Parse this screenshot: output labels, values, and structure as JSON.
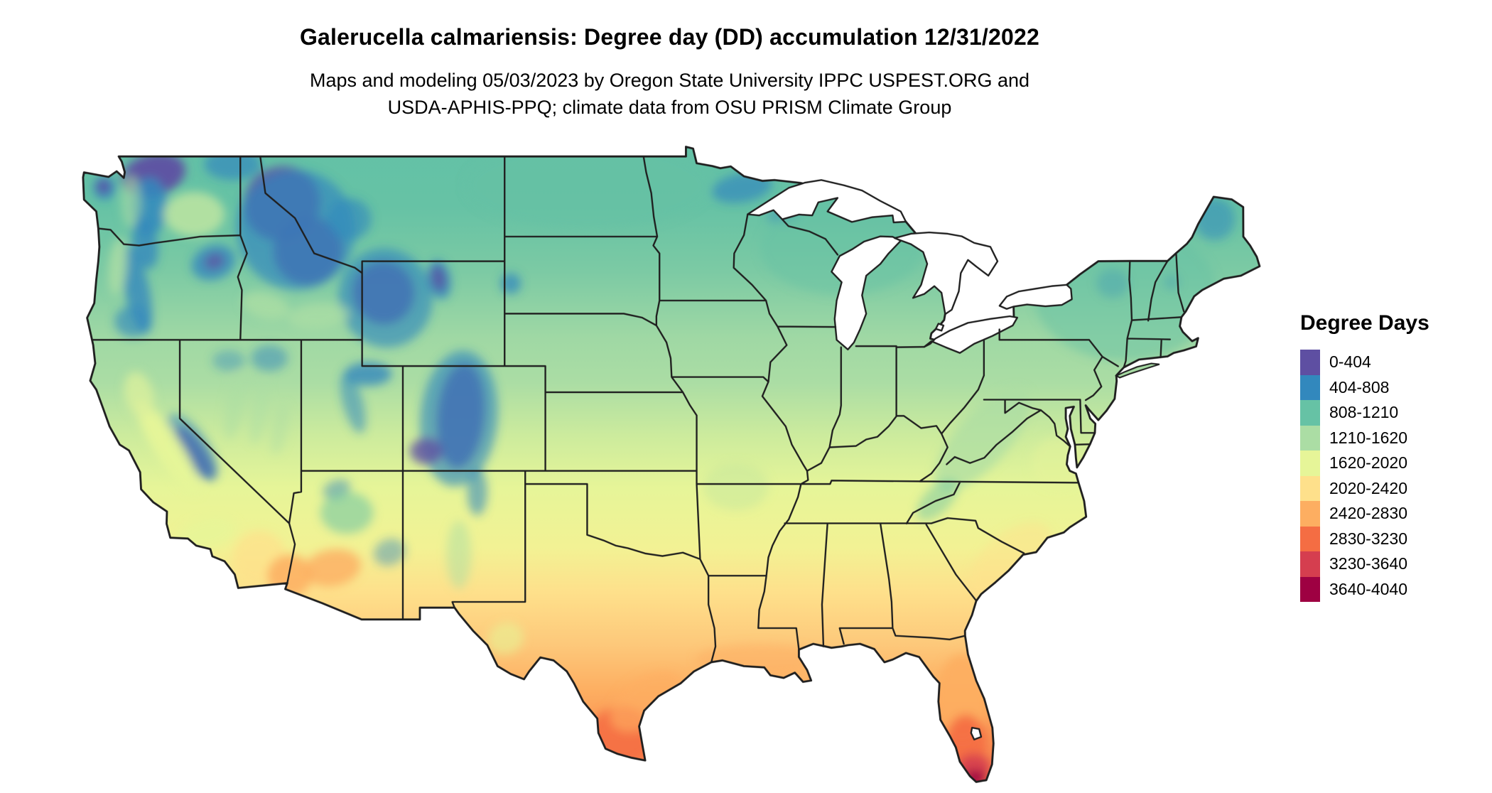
{
  "title": "Galerucella calmariensis: Degree day (DD) accumulation 12/31/2022",
  "subtitle_line1": "Maps and modeling 05/03/2023 by Oregon State University IPPC USPEST.ORG and",
  "subtitle_line2": "USDA-APHIS-PPQ; climate data from OSU PRISM Climate Group",
  "legend": {
    "title": "Degree Days",
    "items": [
      {
        "label": "0-404",
        "color": "#5e4fa2"
      },
      {
        "label": "404-808",
        "color": "#3288bd"
      },
      {
        "label": "808-1210",
        "color": "#66c2a5"
      },
      {
        "label": "1210-1620",
        "color": "#abdda4"
      },
      {
        "label": "1620-2020",
        "color": "#e6f598"
      },
      {
        "label": "2020-2420",
        "color": "#fee08b"
      },
      {
        "label": "2420-2830",
        "color": "#fdae61"
      },
      {
        "label": "2830-3230",
        "color": "#f46d43"
      },
      {
        "label": "3230-3640",
        "color": "#d53e4f"
      },
      {
        "label": "3640-4040",
        "color": "#9e0142"
      }
    ]
  }
}
